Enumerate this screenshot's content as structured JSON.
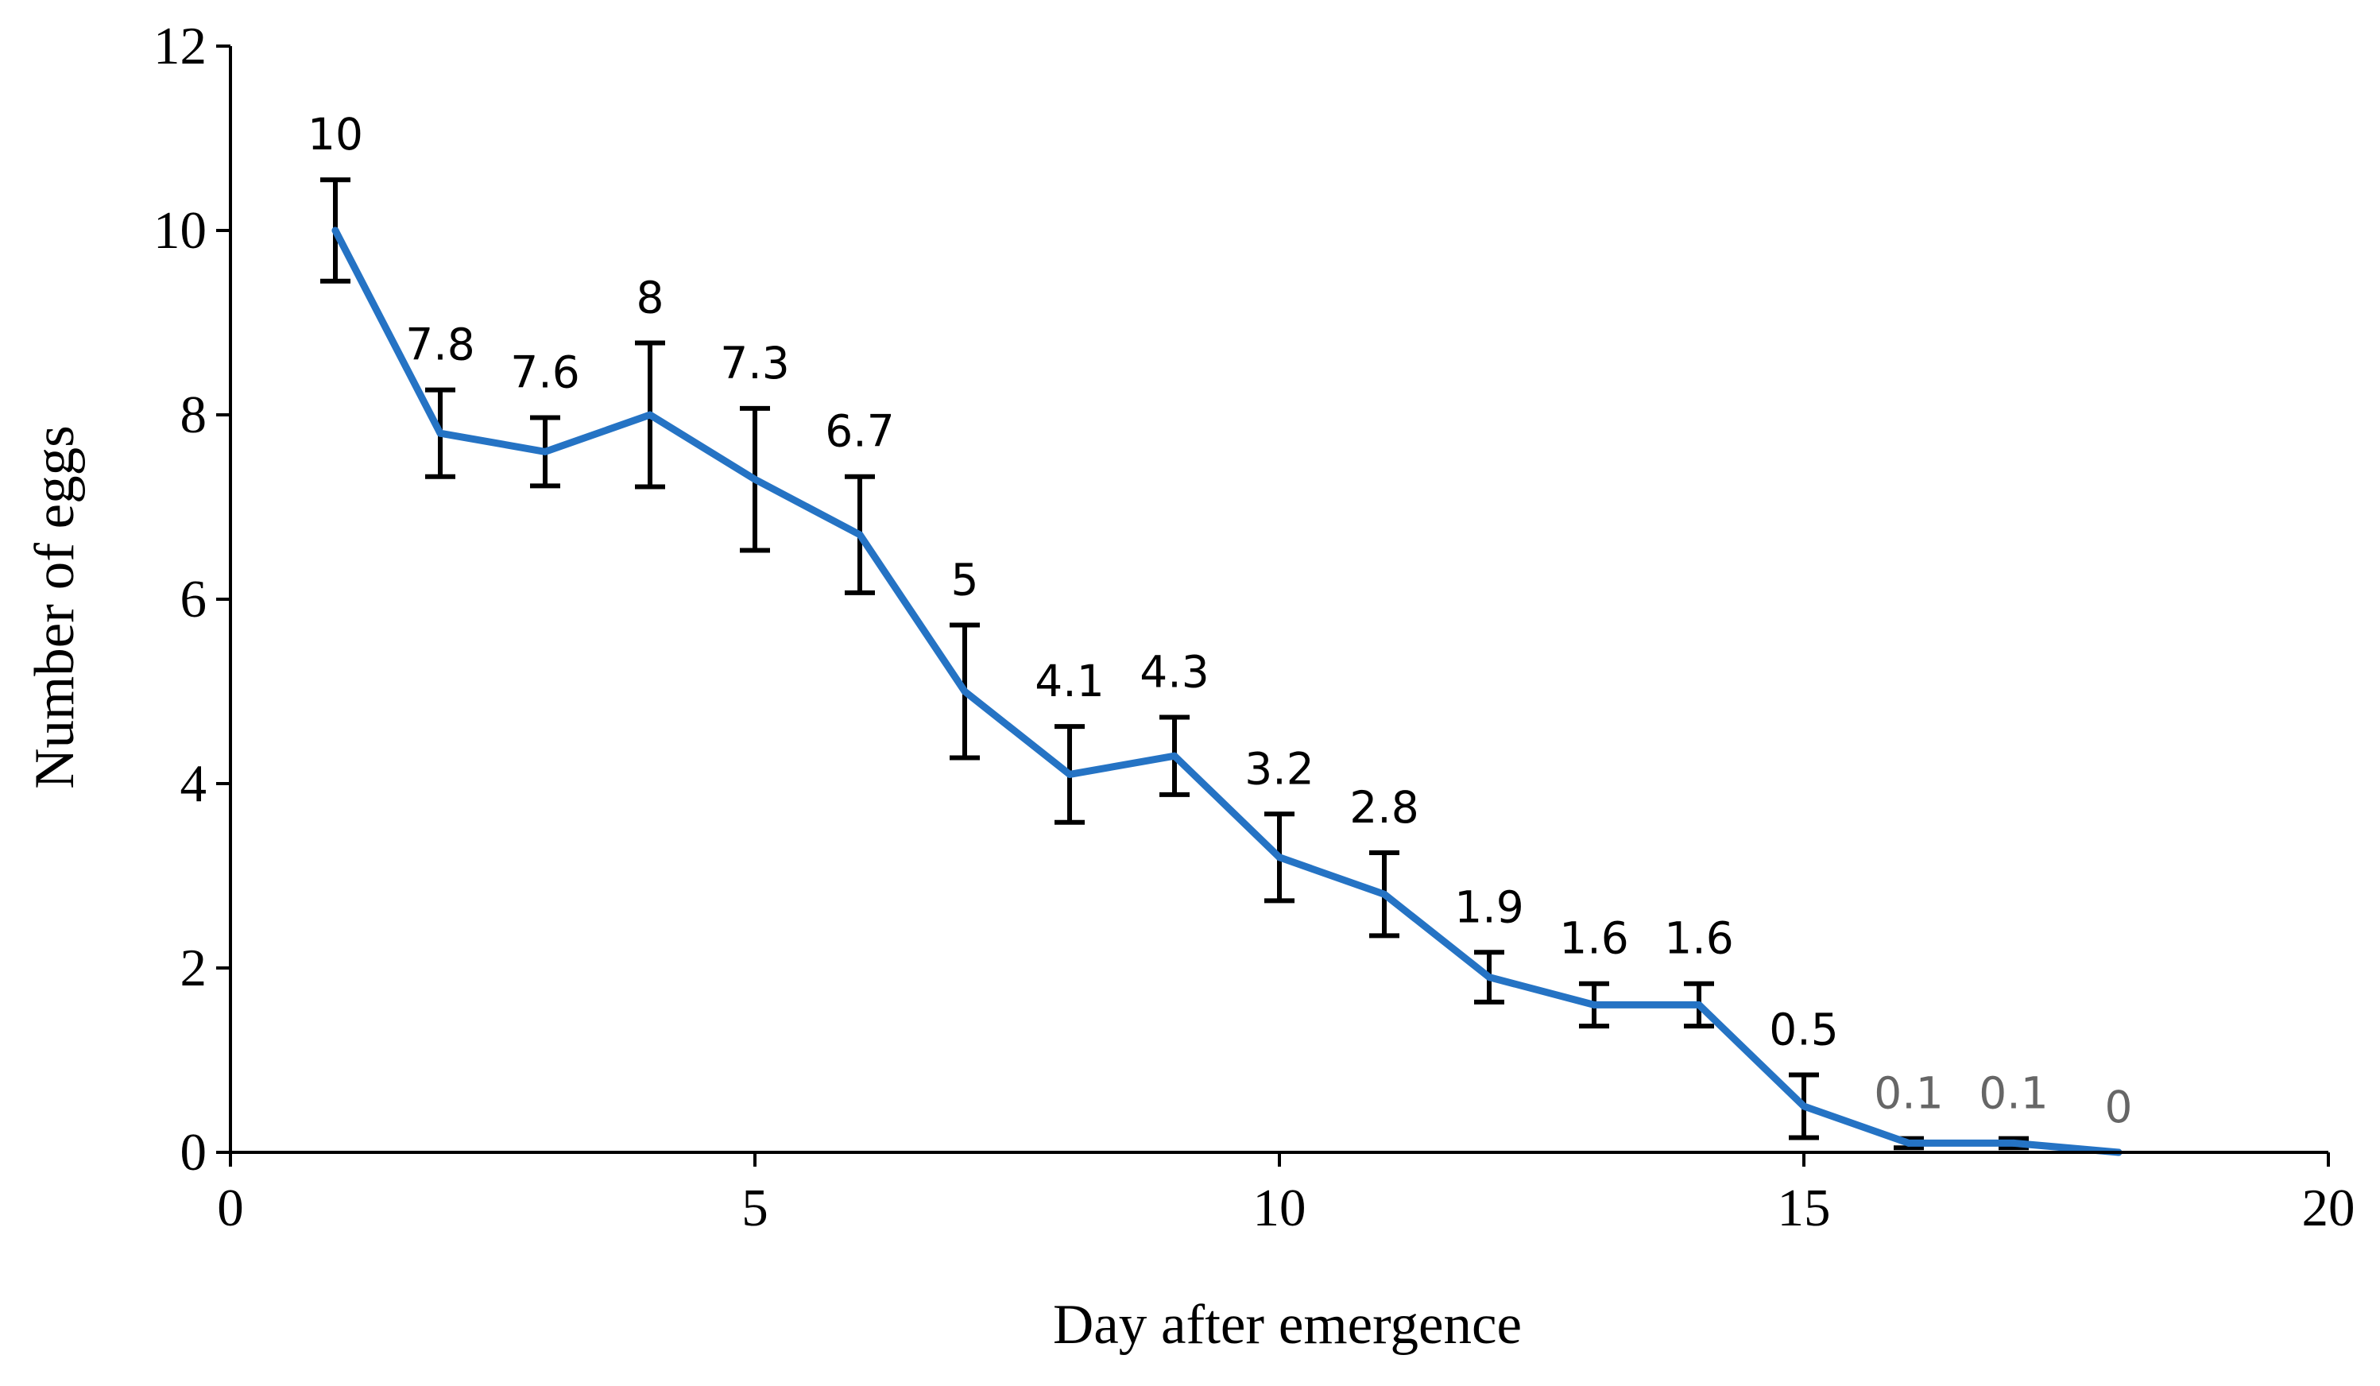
{
  "chart_data": {
    "type": "line",
    "title": "",
    "xlabel": "Day after emergence",
    "ylabel": "Number of eggs",
    "xlim": [
      0,
      20
    ],
    "ylim": [
      0,
      12
    ],
    "x_ticks": [
      0,
      5,
      10,
      15,
      20
    ],
    "y_ticks": [
      0,
      2,
      4,
      6,
      8,
      10,
      12
    ],
    "x_tick_labels": [
      "0",
      "5",
      "10",
      "15",
      "20"
    ],
    "y_tick_labels": [
      "0",
      "2",
      "4",
      "6",
      "8",
      "10",
      "12"
    ],
    "grid": false,
    "legend": "none",
    "colors": {
      "line": "#2573c4",
      "error_bar": "#000000",
      "label": "#000000",
      "label_muted": "#666666"
    },
    "series": [
      {
        "x": [
          1,
          2,
          3,
          4,
          5,
          6,
          7,
          8,
          9,
          10,
          11,
          12,
          13,
          14,
          15,
          16,
          17,
          18
        ],
        "values": [
          10,
          7.8,
          7.6,
          8,
          7.3,
          6.7,
          5,
          4.1,
          4.3,
          3.2,
          2.8,
          1.9,
          1.6,
          1.6,
          0.5,
          0.1,
          0.1,
          0
        ],
        "error": [
          0.55,
          0.47,
          0.37,
          0.78,
          0.77,
          0.63,
          0.72,
          0.52,
          0.42,
          0.47,
          0.45,
          0.27,
          0.23,
          0.23,
          0.34,
          0.05,
          0.05,
          0
        ],
        "labels": [
          "10",
          "7.8",
          "7.6",
          "8",
          "7.3",
          "6.7",
          "5",
          "4.1",
          "4.3",
          "3.2",
          "2.8",
          "1.9",
          "1.6",
          "1.6",
          "0.5",
          "0.1",
          "0.1",
          "0"
        ],
        "label_muted": [
          false,
          false,
          false,
          false,
          false,
          false,
          false,
          false,
          false,
          false,
          false,
          false,
          false,
          false,
          false,
          true,
          true,
          true
        ]
      }
    ]
  }
}
